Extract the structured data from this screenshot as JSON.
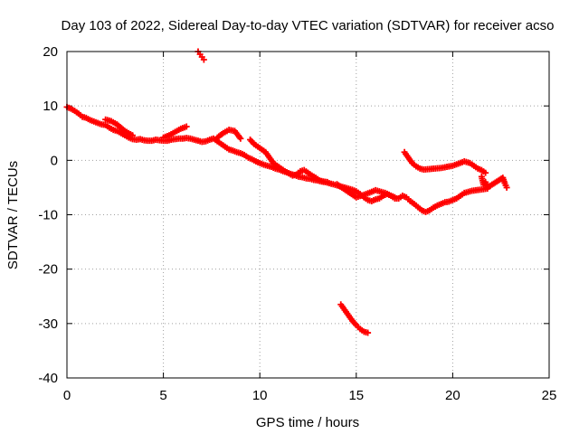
{
  "chart_data": {
    "type": "scatter",
    "title": "Day 103 of 2022, Sidereal Day-to-day VTEC variation (SDTVAR) for receiver acso",
    "xlabel": "GPS time / hours",
    "ylabel": "SDTVAR / TECUs",
    "xlim": [
      0,
      25
    ],
    "ylim": [
      -40,
      20
    ],
    "xticks": [
      0,
      5,
      10,
      15,
      20,
      25
    ],
    "yticks": [
      -40,
      -30,
      -20,
      -10,
      0,
      10,
      20
    ],
    "xtick_labels": [
      "0",
      "5",
      "10",
      "15",
      "20",
      "25"
    ],
    "ytick_labels": [
      "-40",
      "-30",
      "-20",
      "-10",
      "0",
      "10",
      "20"
    ],
    "grid": true,
    "marker": "plus",
    "series_color": "#ff0000",
    "series": [
      {
        "name": "main-trend",
        "x": [
          0.0,
          0.2,
          0.4,
          0.6,
          0.8,
          1.0,
          1.2,
          1.5,
          1.8,
          2.0,
          2.2,
          2.4,
          2.6,
          2.8,
          3.0,
          3.2,
          3.4,
          3.6,
          3.8,
          4.0,
          4.2,
          4.4,
          4.6,
          4.8,
          5.0,
          5.2,
          5.4,
          5.6,
          5.8,
          6.0,
          6.2,
          6.4,
          6.6,
          6.8,
          7.0,
          7.2,
          7.4,
          7.6,
          7.8,
          8.0,
          8.2,
          8.4,
          8.6,
          8.8,
          9.0,
          9.2,
          9.4,
          9.6,
          9.8,
          10.0,
          10.2,
          10.4,
          10.6,
          10.8,
          11.0,
          11.2,
          11.4,
          11.6,
          11.8,
          12.0,
          12.2,
          12.4,
          12.6,
          12.8,
          13.0,
          13.2,
          13.4,
          13.6,
          13.8,
          14.0,
          14.2,
          14.4,
          14.6,
          14.8,
          15.0,
          15.2,
          15.4,
          15.6,
          15.8,
          16.0,
          16.2,
          16.4,
          16.6,
          16.8,
          17.0,
          17.2,
          17.4,
          17.6,
          17.8,
          18.0,
          18.2,
          18.4,
          18.6,
          18.8,
          19.0,
          19.2,
          19.4,
          19.6,
          19.8,
          20.0,
          20.2,
          20.4,
          20.6,
          20.8,
          21.0,
          21.2,
          21.4,
          21.6,
          21.8
        ],
        "y": [
          9.8,
          9.5,
          9.1,
          8.6,
          8.0,
          7.8,
          7.4,
          7.0,
          6.6,
          6.5,
          6.0,
          5.6,
          5.4,
          5.0,
          4.6,
          4.2,
          3.9,
          3.8,
          3.9,
          3.7,
          3.6,
          3.6,
          3.8,
          3.7,
          3.6,
          3.6,
          3.8,
          3.9,
          4.0,
          4.0,
          4.1,
          4.0,
          3.8,
          3.6,
          3.4,
          3.5,
          3.8,
          4.0,
          3.5,
          3.0,
          2.5,
          2.0,
          1.8,
          1.5,
          1.3,
          1.0,
          0.5,
          0.2,
          -0.2,
          -0.5,
          -0.8,
          -1.0,
          -1.2,
          -1.5,
          -1.7,
          -2.0,
          -2.2,
          -2.5,
          -2.7,
          -3.0,
          -3.1,
          -3.3,
          -3.4,
          -3.6,
          -3.7,
          -3.9,
          -4.0,
          -4.2,
          -4.4,
          -4.6,
          -4.8,
          -5.0,
          -5.2,
          -5.4,
          -5.7,
          -6.2,
          -6.8,
          -7.3,
          -7.5,
          -7.2,
          -7.0,
          -6.5,
          -6.2,
          -6.5,
          -7.0,
          -7.0,
          -6.5,
          -6.8,
          -7.5,
          -8.0,
          -8.6,
          -9.2,
          -9.5,
          -9.2,
          -8.7,
          -8.3,
          -8.0,
          -7.7,
          -7.6,
          -7.3,
          -7.0,
          -6.5,
          -6.0,
          -5.8,
          -5.6,
          -5.5,
          -5.4,
          -5.3,
          -5.2
        ]
      },
      {
        "name": "upper-branch-a",
        "x": [
          2.0,
          2.3,
          2.6,
          3.0,
          3.4
        ],
        "y": [
          7.5,
          7.2,
          6.6,
          5.4,
          4.6
        ]
      },
      {
        "name": "upper-branch-b",
        "x": [
          5.0,
          5.3,
          5.6,
          5.9,
          6.2
        ],
        "y": [
          4.2,
          4.6,
          5.2,
          5.8,
          6.2
        ]
      },
      {
        "name": "upper-branch-c",
        "x": [
          7.8,
          8.1,
          8.4,
          8.7,
          9.0
        ],
        "y": [
          4.2,
          5.0,
          5.6,
          5.4,
          4.0
        ]
      },
      {
        "name": "parallel-branch",
        "x": [
          9.5,
          9.7,
          9.9,
          10.1,
          10.3,
          10.5,
          10.7,
          10.9,
          11.1,
          11.3,
          11.5,
          11.7,
          11.9,
          12.1,
          12.3,
          12.5,
          12.7,
          12.9,
          13.1,
          13.3,
          13.5
        ],
        "y": [
          3.8,
          3.0,
          2.5,
          2.0,
          1.5,
          0.5,
          -0.5,
          -1.0,
          -1.5,
          -2.0,
          -2.4,
          -2.8,
          -2.6,
          -2.0,
          -1.8,
          -2.3,
          -2.8,
          -3.2,
          -3.7,
          -3.9,
          -4.0
        ]
      },
      {
        "name": "upper-right-arc",
        "x": [
          17.5,
          17.7,
          17.9,
          18.1,
          18.3,
          18.5,
          18.8,
          19.1,
          19.4,
          19.7,
          20.0,
          20.3,
          20.6,
          20.9,
          21.1,
          21.3,
          21.5,
          21.7
        ],
        "y": [
          1.5,
          0.5,
          -0.5,
          -1.1,
          -1.5,
          -1.7,
          -1.6,
          -1.5,
          -1.4,
          -1.2,
          -1.0,
          -0.6,
          -0.2,
          -0.5,
          -1.0,
          -1.5,
          -1.8,
          -2.3
        ]
      },
      {
        "name": "right-cluster",
        "x": [
          21.5,
          21.6,
          21.7,
          21.8,
          22.6,
          22.7,
          22.8
        ],
        "y": [
          -3.0,
          -4.5,
          -4.0,
          -5.0,
          -3.2,
          -4.2,
          -5.0
        ]
      },
      {
        "name": "lower-cluster",
        "x": [
          14.0,
          14.5,
          15.0,
          15.5,
          16.0,
          16.5,
          17.0
        ],
        "y": [
          -4.4,
          -5.6,
          -6.8,
          -6.2,
          -5.5,
          -6.0,
          -6.8
        ]
      },
      {
        "name": "outlier-top",
        "x": [
          6.8,
          6.9,
          7.0,
          7.1
        ],
        "y": [
          20.0,
          19.5,
          19.0,
          18.5
        ]
      },
      {
        "name": "outlier-bottom",
        "x": [
          14.2,
          14.4,
          14.6,
          14.8,
          15.0,
          15.2,
          15.4,
          15.6
        ],
        "y": [
          -26.5,
          -27.5,
          -28.5,
          -29.5,
          -30.3,
          -31.0,
          -31.5,
          -31.7
        ]
      }
    ]
  }
}
